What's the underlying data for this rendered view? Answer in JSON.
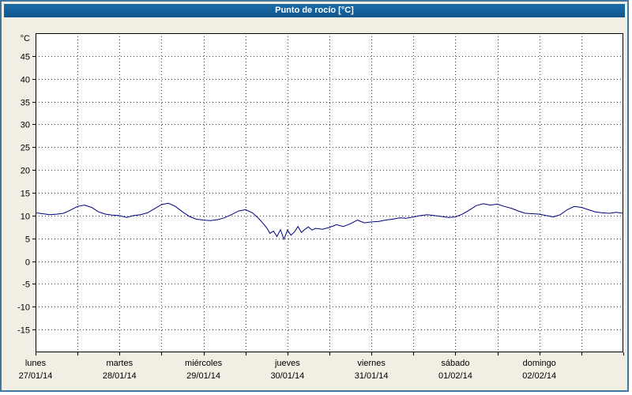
{
  "window": {
    "title": "Punto de rocío [°C]"
  },
  "colors": {
    "frame_border": "#44779d",
    "title_bar": "#15639e",
    "title_text": "#ffffff",
    "page_bg": "#f1eee3",
    "plot_bg": "#ffffff",
    "grid": "#404040",
    "axis": "#000000",
    "line": "#000080"
  },
  "chart_data": {
    "type": "line",
    "title": "Punto de rocío [°C]",
    "ylabel": "°C",
    "xlabel": "",
    "grid": true,
    "legend": "none",
    "ylim": [
      -20,
      50
    ],
    "yticks": [
      45,
      40,
      35,
      30,
      25,
      20,
      15,
      10,
      5,
      0,
      -5,
      -10,
      -15
    ],
    "x_unit": "hours",
    "xlim": [
      0,
      168
    ],
    "x_gridline_step_hours": 12,
    "days": [
      {
        "label": "lunes",
        "date": "27/01/14"
      },
      {
        "label": "martes",
        "date": "28/01/14"
      },
      {
        "label": "miércoles",
        "date": "29/01/14"
      },
      {
        "label": "jueves",
        "date": "30/01/14"
      },
      {
        "label": "viernes",
        "date": "31/01/14"
      },
      {
        "label": "sábado",
        "date": "01/02/14"
      },
      {
        "label": "domingo",
        "date": "02/02/14"
      }
    ],
    "series": [
      {
        "name": "Punto de rocío [°C]",
        "color": "#000080",
        "x": [
          0,
          2,
          4,
          6,
          8,
          10,
          12,
          14,
          16,
          18,
          20,
          22,
          24,
          26,
          28,
          30,
          32,
          34,
          36,
          38,
          40,
          42,
          44,
          46,
          48,
          50,
          52,
          54,
          56,
          58,
          60,
          62,
          63,
          64,
          65,
          66,
          67,
          68,
          69,
          70,
          71,
          72,
          73,
          74,
          75,
          76,
          77,
          78,
          79,
          80,
          82,
          84,
          86,
          88,
          90,
          92,
          94,
          96,
          98,
          100,
          102,
          104,
          106,
          108,
          110,
          112,
          114,
          116,
          118,
          120,
          122,
          124,
          126,
          128,
          130,
          132,
          134,
          136,
          138,
          140,
          142,
          144,
          146,
          148,
          150,
          152,
          154,
          156,
          158,
          160,
          162,
          164,
          166,
          168
        ],
        "y": [
          10.6,
          10.4,
          10.2,
          10.3,
          10.5,
          11.2,
          12.0,
          12.3,
          11.8,
          10.8,
          10.3,
          10.1,
          10.0,
          9.6,
          10.0,
          10.2,
          10.6,
          11.5,
          12.4,
          12.7,
          12.0,
          10.8,
          9.8,
          9.2,
          9.0,
          8.9,
          9.1,
          9.5,
          10.2,
          11.0,
          11.3,
          10.6,
          9.9,
          9.2,
          8.3,
          7.4,
          6.1,
          6.6,
          5.4,
          6.9,
          4.8,
          6.8,
          5.7,
          6.4,
          7.6,
          6.3,
          7.0,
          7.5,
          6.8,
          7.2,
          7.0,
          7.4,
          8.0,
          7.6,
          8.2,
          9.0,
          8.4,
          8.6,
          8.7,
          9.0,
          9.2,
          9.5,
          9.4,
          9.7,
          10.0,
          10.2,
          10.0,
          9.8,
          9.6,
          9.7,
          10.3,
          11.2,
          12.2,
          12.6,
          12.3,
          12.5,
          12.0,
          11.6,
          11.0,
          10.5,
          10.4,
          10.3,
          10.0,
          9.7,
          10.2,
          11.3,
          12.0,
          11.8,
          11.3,
          10.8,
          10.6,
          10.5,
          10.7,
          10.5
        ]
      }
    ]
  }
}
